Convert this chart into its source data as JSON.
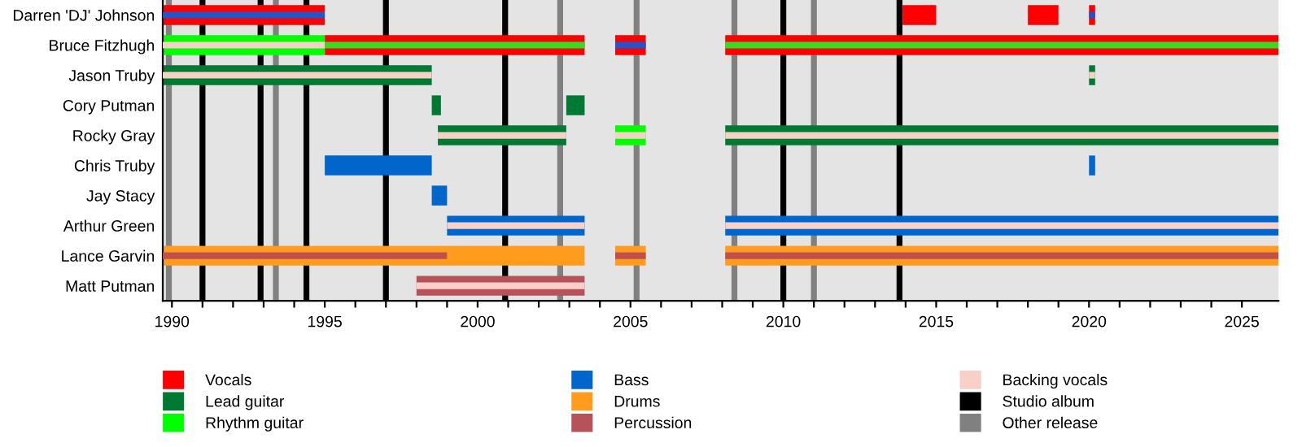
{
  "chart_data": {
    "type": "bar",
    "orientation": "horizontal",
    "categories": [
      "Darren 'DJ' Johnson",
      "Bruce Fitzhugh",
      "Jason Truby",
      "Cory Putman",
      "Rocky Gray",
      "Chris Truby",
      "Jay Stacy",
      "Arthur Green",
      "Lance Garvin",
      "Matt Putman"
    ],
    "series": [
      {
        "name": "Vocals",
        "color": "#ff0000",
        "base": [
          1989.7,
          1995,
          null,
          null,
          null,
          null,
          null,
          null,
          null,
          null
        ],
        "values": [
          5.3,
          8.5,
          null,
          null,
          null,
          null,
          null,
          null,
          null,
          null
        ]
      },
      {
        "color": "#ff0000",
        "base": [
          2013.9,
          2004.5,
          null,
          null,
          null,
          null,
          null,
          null,
          null,
          null
        ],
        "values": [
          1.1,
          1.0,
          null,
          null,
          null,
          null,
          null,
          null,
          null,
          null
        ]
      },
      {
        "color": "#ff0000",
        "base": [
          2018,
          2008.1,
          null,
          null,
          null,
          null,
          null,
          null,
          null,
          null
        ],
        "values": [
          1.0,
          18.1,
          null,
          null,
          null,
          null,
          null,
          null,
          null,
          null
        ]
      },
      {
        "color": "#ff0000",
        "base": [
          2020,
          null,
          null,
          null,
          null,
          null,
          null,
          null,
          null,
          null
        ],
        "values": [
          0.2,
          null,
          null,
          null,
          null,
          null,
          null,
          null,
          null,
          null
        ]
      },
      {
        "name": "Lead guitar",
        "color": "#007a33",
        "base": [
          null,
          null,
          1989.7,
          1998.5,
          1998.7,
          null,
          null,
          null,
          null,
          null
        ],
        "values": [
          null,
          null,
          8.8,
          0.3,
          4.2,
          null,
          null,
          null,
          null,
          null
        ]
      },
      {
        "color": "#007a33",
        "base": [
          null,
          null,
          2020,
          2002.9,
          2008.1,
          null,
          null,
          null,
          null,
          null
        ],
        "values": [
          null,
          null,
          0.2,
          0.6,
          18.1,
          null,
          null,
          null,
          null,
          null
        ]
      },
      {
        "name": "Rhythm guitar",
        "color": "#00ff00",
        "base": [
          null,
          1989.7,
          null,
          null,
          2004.5,
          null,
          null,
          null,
          null,
          null
        ],
        "values": [
          null,
          5.3,
          null,
          null,
          1.0,
          null,
          null,
          null,
          null,
          null
        ]
      },
      {
        "name": "Bass",
        "color": "#0066cc",
        "base": [
          null,
          null,
          null,
          null,
          null,
          1995,
          1998.5,
          1999,
          null,
          null
        ],
        "values": [
          null,
          null,
          null,
          null,
          null,
          3.5,
          0.5,
          4.5,
          null,
          null
        ]
      },
      {
        "color": "#0066cc",
        "base": [
          null,
          null,
          null,
          null,
          null,
          2020,
          null,
          2008.1,
          null,
          null
        ],
        "values": [
          null,
          null,
          null,
          null,
          null,
          0.2,
          null,
          18.1,
          null,
          null
        ]
      },
      {
        "name": "Drums",
        "color": "#ff9c1e",
        "base": [
          null,
          null,
          null,
          null,
          null,
          null,
          null,
          null,
          1989.7,
          null
        ],
        "values": [
          null,
          null,
          null,
          null,
          null,
          null,
          null,
          null,
          13.8,
          null
        ]
      },
      {
        "color": "#ff9c1e",
        "base": [
          null,
          null,
          null,
          null,
          null,
          null,
          null,
          null,
          2004.5,
          null
        ],
        "values": [
          null,
          null,
          null,
          null,
          null,
          null,
          null,
          null,
          1.0,
          null
        ]
      },
      {
        "color": "#ff9c1e",
        "base": [
          null,
          null,
          null,
          null,
          null,
          null,
          null,
          null,
          2008.1,
          null
        ],
        "values": [
          null,
          null,
          null,
          null,
          null,
          null,
          null,
          null,
          18.1,
          null
        ]
      },
      {
        "name": "Percussion",
        "color": "#b5525a",
        "base": [
          null,
          null,
          null,
          null,
          null,
          null,
          null,
          null,
          null,
          1998
        ],
        "values": [
          null,
          null,
          null,
          null,
          null,
          null,
          null,
          null,
          null,
          5.5
        ]
      },
      {
        "color": "#2255cc",
        "base": [
          1989.7,
          2004.5,
          null,
          null,
          null,
          null,
          null,
          null,
          null,
          null
        ],
        "values": [
          5.3,
          1.0,
          null,
          null,
          null,
          null,
          null,
          null,
          null,
          null
        ]
      },
      {
        "color": "#2255cc",
        "base": [
          2020,
          null,
          null,
          null,
          null,
          null,
          null,
          null,
          null,
          null
        ],
        "values": [
          0.2,
          null,
          null,
          null,
          null,
          null,
          null,
          null,
          null,
          null
        ]
      },
      {
        "color": "#33dd22",
        "base": [
          null,
          1995,
          null,
          null,
          null,
          null,
          null,
          null,
          null,
          null
        ],
        "values": [
          null,
          8.5,
          null,
          null,
          null,
          null,
          null,
          null,
          null,
          null
        ]
      },
      {
        "color": "#33dd22",
        "base": [
          null,
          2008.1,
          null,
          null,
          null,
          null,
          null,
          null,
          null,
          null
        ],
        "values": [
          null,
          18.1,
          null,
          null,
          null,
          null,
          null,
          null,
          null,
          null
        ]
      },
      {
        "name": "Backing vocals",
        "color": "#f8d0c8",
        "base": [
          null,
          1989.7,
          1989.7,
          null,
          1998.7,
          null,
          null,
          1999,
          null,
          1998
        ],
        "values": [
          null,
          5.3,
          8.8,
          null,
          4.2,
          null,
          null,
          4.5,
          null,
          5.5
        ]
      },
      {
        "color": "#f8d0c8",
        "base": [
          null,
          null,
          2020,
          null,
          2004.5,
          null,
          null,
          2008.1,
          null,
          null
        ],
        "values": [
          null,
          null,
          0.2,
          null,
          1.0,
          null,
          null,
          18.1,
          null,
          null
        ]
      },
      {
        "color": "#f8d0c8",
        "base": [
          null,
          null,
          null,
          null,
          2008.1,
          null,
          null,
          null,
          null,
          null
        ],
        "values": [
          null,
          null,
          null,
          null,
          18.1,
          null,
          null,
          null,
          null,
          null
        ]
      },
      {
        "color": "#c0504d",
        "base": [
          null,
          null,
          null,
          null,
          null,
          null,
          null,
          null,
          1989.7,
          null
        ],
        "values": [
          null,
          null,
          null,
          null,
          null,
          null,
          null,
          null,
          9.3,
          null
        ]
      },
      {
        "color": "#c0504d",
        "base": [
          null,
          null,
          null,
          null,
          null,
          null,
          null,
          null,
          2004.5,
          null
        ],
        "values": [
          null,
          null,
          null,
          null,
          null,
          null,
          null,
          null,
          1.0,
          null
        ]
      },
      {
        "color": "#c0504d",
        "base": [
          null,
          null,
          null,
          null,
          null,
          null,
          null,
          null,
          2008.1,
          null
        ],
        "values": [
          null,
          null,
          null,
          null,
          null,
          null,
          null,
          null,
          18.1,
          null
        ]
      }
    ],
    "ref_lines": [
      {
        "axis": "x",
        "value": 1991.0,
        "label": "Studio album",
        "color": "#000000"
      },
      {
        "axis": "x",
        "value": 1992.9,
        "color": "#000000"
      },
      {
        "axis": "x",
        "value": 1994.4,
        "color": "#000000"
      },
      {
        "axis": "x",
        "value": 1997.0,
        "color": "#000000"
      },
      {
        "axis": "x",
        "value": 2000.9,
        "color": "#000000"
      },
      {
        "axis": "x",
        "value": 2010.0,
        "color": "#000000"
      },
      {
        "axis": "x",
        "value": 2013.8,
        "color": "#000000"
      },
      {
        "axis": "x",
        "value": 1989.9,
        "label": "Other release",
        "color": "#808080"
      },
      {
        "axis": "x",
        "value": 1993.4,
        "color": "#808080"
      },
      {
        "axis": "x",
        "value": 2002.7,
        "color": "#808080"
      },
      {
        "axis": "x",
        "value": 2005.2,
        "color": "#808080"
      },
      {
        "axis": "x",
        "value": 2008.4,
        "color": "#808080"
      },
      {
        "axis": "x",
        "value": 2011.0,
        "color": "#808080"
      }
    ],
    "xlim": [
      1989.7,
      2026.2
    ],
    "xticks": [
      1990,
      {
        "value": 1991,
        "label": null
      },
      {
        "value": 1992,
        "label": null
      },
      {
        "value": 1993,
        "label": null
      },
      {
        "value": 1994,
        "label": null
      },
      1995,
      {
        "value": 1996,
        "label": null
      },
      {
        "value": 1997,
        "label": null
      },
      {
        "value": 1998,
        "label": null
      },
      {
        "value": 1999,
        "label": null
      },
      2000,
      {
        "value": 2001,
        "label": null
      },
      {
        "value": 2002,
        "label": null
      },
      {
        "value": 2003,
        "label": null
      },
      {
        "value": 2004,
        "label": null
      },
      2005,
      {
        "value": 2006,
        "label": null
      },
      {
        "value": 2007,
        "label": null
      },
      {
        "value": 2008,
        "label": null
      },
      {
        "value": 2009,
        "label": null
      },
      2010,
      {
        "value": 2011,
        "label": null
      },
      {
        "value": 2012,
        "label": null
      },
      {
        "value": 2013,
        "label": null
      },
      {
        "value": 2014,
        "label": null
      },
      2015,
      {
        "value": 2016,
        "label": null
      },
      {
        "value": 2017,
        "label": null
      },
      {
        "value": 2018,
        "label": null
      },
      {
        "value": 2019,
        "label": null
      },
      2020,
      {
        "value": 2021,
        "label": null
      },
      {
        "value": 2022,
        "label": null
      },
      {
        "value": 2023,
        "label": null
      },
      {
        "value": 2024,
        "label": null
      },
      2025
    ],
    "legend": "bottom",
    "grid": false
  }
}
